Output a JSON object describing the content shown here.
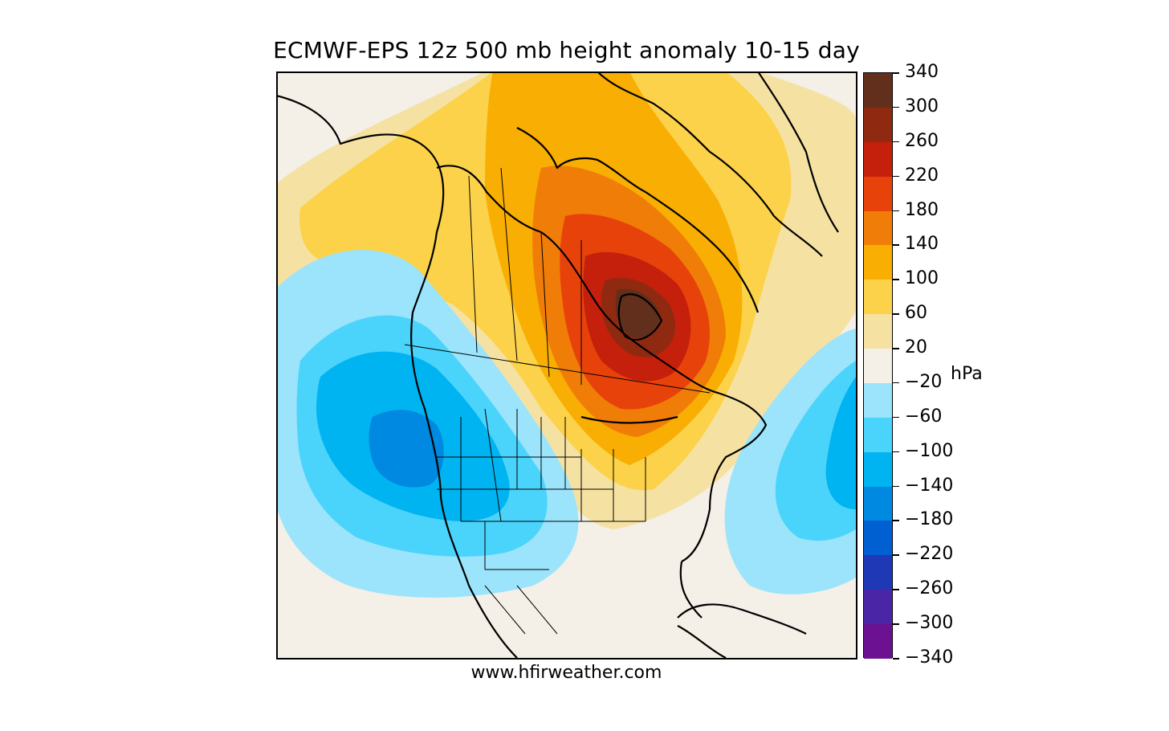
{
  "title": "ECMWF-EPS 12z 500 mb height anomaly 10-15 day",
  "credit": "www.hfirweather.com",
  "map": {
    "region": "North America",
    "projection_note": "polar stereographic-style regional map with state/province borders",
    "ridge_label": "positive height anomaly over Hudson Bay / central Canada",
    "trough_label": "negative height anomaly over U.S. West Coast and western Atlantic"
  },
  "colorbar": {
    "unit": "hPa",
    "tick_labels": [
      "340",
      "300",
      "260",
      "220",
      "180",
      "140",
      "100",
      "60",
      "20",
      "−20",
      "−60",
      "−100",
      "−140",
      "−180",
      "−220",
      "−260",
      "−300",
      "−340"
    ],
    "colors": [
      "#622f1c",
      "#8f2a10",
      "#c4200c",
      "#e8420b",
      "#f07d08",
      "#f8ae02",
      "#fcd24a",
      "#f5e2a3",
      "#f4efe7",
      "#9be4fb",
      "#4bd4fb",
      "#00b4f1",
      "#0089e0",
      "#0060d2",
      "#1e38b6",
      "#4a26a6",
      "#6c1191"
    ]
  },
  "colors": {
    "background": "#f4efe7",
    "land_outline": "#000000"
  }
}
